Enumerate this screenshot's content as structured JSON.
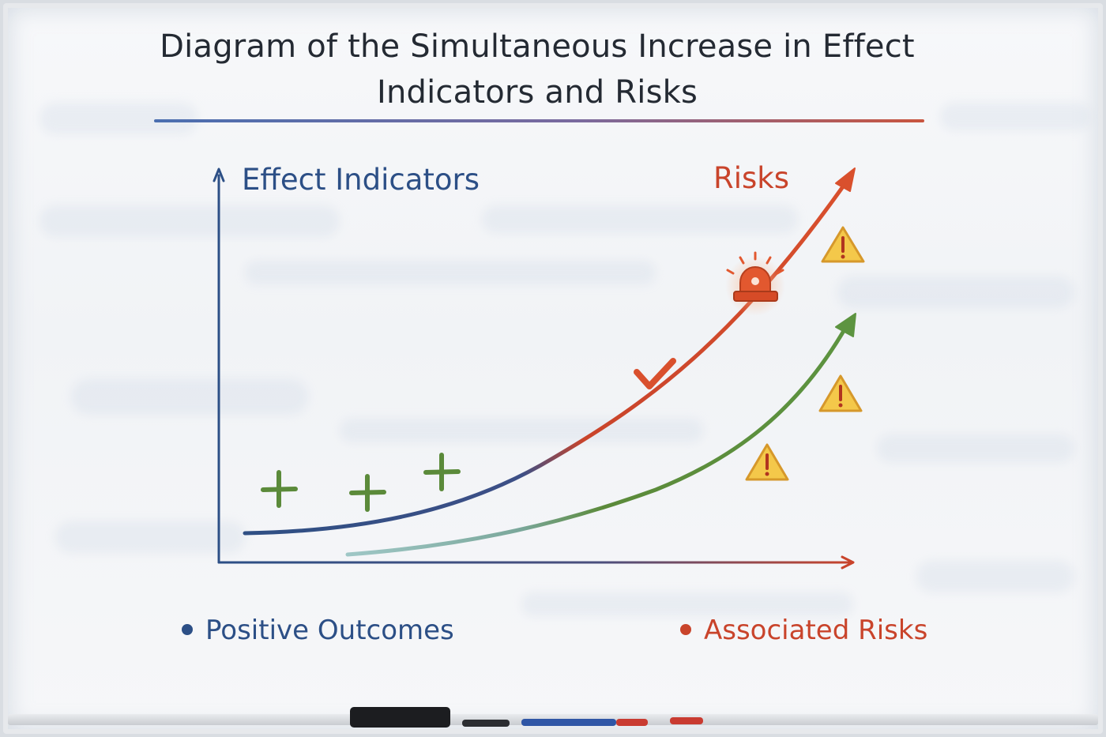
{
  "title_line1": "Diagram of the Simultaneous Increase in Effect",
  "title_line2": "Indicators and Risks",
  "labels": {
    "effect": "Effect Indicators",
    "risks": "Risks"
  },
  "legend": {
    "positive": "Positive Outcomes",
    "risk": "Associated Risks"
  },
  "colors": {
    "blue": "#2c4f86",
    "red": "#c9442b",
    "green": "#5b8a3a",
    "warning_fill": "#f4c84a",
    "title": "#242a33"
  },
  "icons": [
    "plus-icon",
    "plus-icon",
    "plus-icon",
    "checkmark-icon",
    "alarm-siren-icon",
    "warning-icon",
    "warning-icon",
    "warning-icon"
  ]
}
